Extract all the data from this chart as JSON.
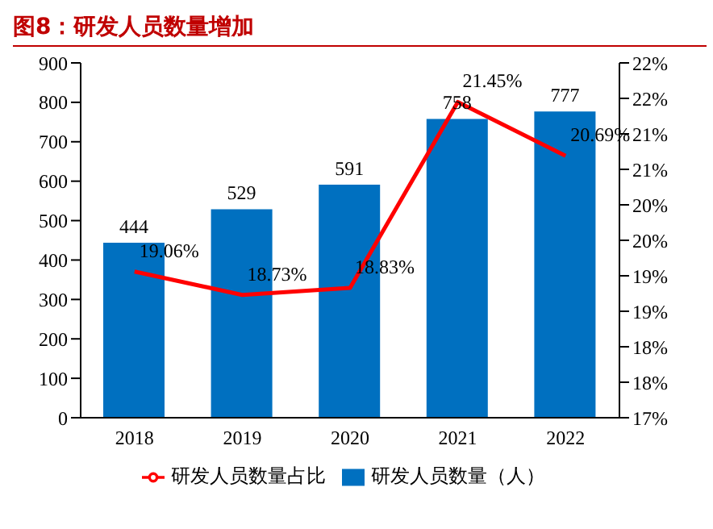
{
  "chart_data": {
    "type": "bar",
    "title": "图8：研发人员数量增加",
    "categories": [
      "2018",
      "2019",
      "2020",
      "2021",
      "2022"
    ],
    "series": [
      {
        "name": "研发人员数量（人）",
        "color": "#0070c0",
        "values": [
          444,
          529,
          591,
          758,
          777
        ],
        "value_labels": [
          "444",
          "529",
          "591",
          "758",
          "777"
        ]
      },
      {
        "name": "研发人员数量占比",
        "type": "line",
        "axis": "y2",
        "color": "#ff0000",
        "values": [
          19.06,
          18.73,
          18.83,
          21.45,
          20.69
        ],
        "value_labels": [
          "19.06%",
          "18.73%",
          "18.83%",
          "21.45%",
          "20.69%"
        ],
        "marker": "none"
      }
    ],
    "ylim": [
      0,
      900
    ],
    "yticks": [
      0,
      100,
      200,
      300,
      400,
      500,
      600,
      700,
      800,
      900
    ],
    "y2lim": [
      17,
      22
    ],
    "y2ticks": [
      {
        "value": 17,
        "label": "17%"
      },
      {
        "value": 17.5,
        "label": "18%"
      },
      {
        "value": 18,
        "label": "18%"
      },
      {
        "value": 18.5,
        "label": "19%"
      },
      {
        "value": 19,
        "label": "19%"
      },
      {
        "value": 19.5,
        "label": "20%"
      },
      {
        "value": 20,
        "label": "20%"
      },
      {
        "value": 20.5,
        "label": "21%"
      },
      {
        "value": 21,
        "label": "21%"
      },
      {
        "value": 21.5,
        "label": "22%"
      },
      {
        "value": 22,
        "label": "22%"
      }
    ],
    "grid": false,
    "legend": "bottom"
  }
}
